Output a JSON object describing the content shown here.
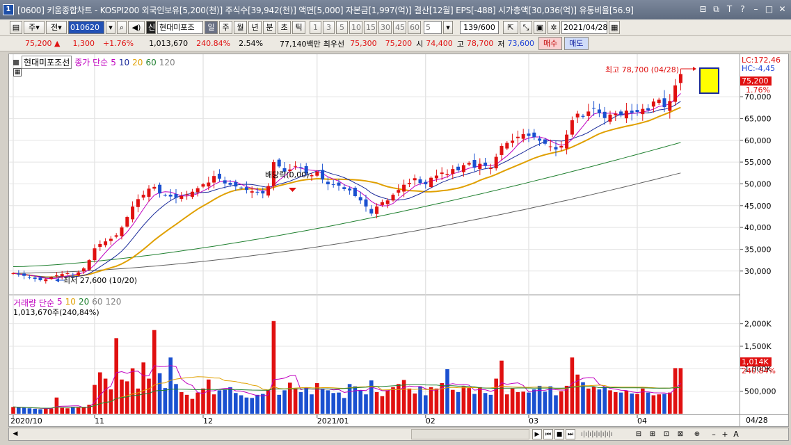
{
  "window": {
    "title": "[0600] 키움종합차트 - KOSPI200 외국인보유[5,200(천)] 주식수[39,942(천)] 액면[5,000] 자본금[1,997(억)] 결산[12월] EPS[-488] 시가총액[30,036(억)] 유통비율[56.9]",
    "app_icon": "1",
    "buttons": [
      "⊟",
      "⧉",
      "T",
      "?",
      "–",
      "□",
      "✕"
    ]
  },
  "toolbar": {
    "type1": "주",
    "type2": "전",
    "code": "010620",
    "sound_icon": "speaker-icon",
    "badge": "신",
    "name": "현대미포조",
    "periods": [
      "일",
      "주",
      "월",
      "년",
      "분",
      "초",
      "틱"
    ],
    "selected_period": "일",
    "intervals": [
      "1",
      "3",
      "5",
      "10",
      "15",
      "30",
      "45",
      "60"
    ],
    "interval_value": "5",
    "count": "139/600",
    "date": "2021/04/28"
  },
  "quote": {
    "price": "75,200",
    "arrow": "▲",
    "change": "1,300",
    "pct": "+1.76%",
    "volume": "1,013,670",
    "vol_ratio": "240.84%",
    "turnover": "2.54%",
    "amount": "77,140백만",
    "preferred_label": "최우선",
    "ask": "75,300",
    "bid": "75,200",
    "open_label": "시",
    "open": "74,400",
    "high_label": "고",
    "high": "78,700",
    "low_label": "저",
    "low": "73,600",
    "buy": "매수",
    "sell": "매도"
  },
  "price_panel": {
    "name_box": "현대미포조선",
    "legend": "종가 단순",
    "ma": [
      "5",
      "10",
      "20",
      "60",
      "120"
    ],
    "ma_colors": [
      "#c000c0",
      "#1a2a9a",
      "#e0a000",
      "#208030",
      "#606060"
    ],
    "high_annotation": "최고 78,700 (04/28)",
    "low_annotation": "최저 27,600 (10/20)",
    "dividend_annotation": "배당락(0,00)",
    "lc": "LC:172,46",
    "hc": "HC:-4,45",
    "last_price": "75,200",
    "last_pct": "1.76%",
    "y_ticks": [
      "70,000",
      "65,000",
      "60,000",
      "55,000",
      "50,000",
      "45,000",
      "40,000",
      "35,000",
      "30,000"
    ]
  },
  "volume_panel": {
    "title": "거래량 단순",
    "ma": [
      "5",
      "10",
      "20",
      "60",
      "120"
    ],
    "value_label": "1,013,670주(240,84%)",
    "last": "1,014K",
    "last_pct": "240.84%",
    "y_ticks": [
      "2,000K",
      "1,500K",
      "1,000K",
      "500,000"
    ]
  },
  "x_axis": {
    "labels": [
      "2020/10",
      "11",
      "12",
      "2021/01",
      "02",
      "03",
      "04"
    ],
    "right_label": "04/28"
  },
  "chart_data": {
    "type": "candlestick",
    "closes": [
      29500,
      29200,
      28900,
      28500,
      28200,
      27900,
      28100,
      28600,
      29000,
      29300,
      29500,
      29100,
      29700,
      30600,
      32500,
      35200,
      36200,
      36800,
      37400,
      38200,
      40000,
      42400,
      44800,
      46500,
      47500,
      48900,
      49300,
      47800,
      47400,
      47100,
      46800,
      47200,
      47600,
      48200,
      49000,
      49900,
      50300,
      51800,
      51200,
      50100,
      49800,
      49400,
      49000,
      48600,
      48300,
      48000,
      47800,
      49500,
      55000,
      54000,
      52800,
      53300,
      54100,
      53800,
      52400,
      52000,
      52800,
      51000,
      49900,
      49800,
      49600,
      48800,
      48500,
      47200,
      46200,
      44800,
      43200,
      44800,
      45800,
      46200,
      47500,
      48600,
      49800,
      50200,
      51300,
      50200,
      49900,
      51400,
      51900,
      52600,
      52300,
      53400,
      53100,
      54300,
      54800,
      53700,
      54600,
      54100,
      53700,
      56200,
      58700,
      59400,
      59900,
      60800,
      61400,
      61000,
      60700,
      59900,
      59200,
      58600,
      57900,
      58700,
      61300,
      64600,
      66100,
      65400,
      66600,
      67400,
      66200,
      65100,
      65900,
      66100,
      65700,
      66800,
      66300,
      66500,
      67200,
      66900,
      68900,
      69300,
      67600,
      69000,
      72600,
      75200
    ],
    "volumes": [
      150,
      140,
      130,
      120,
      110,
      100,
      120,
      115,
      360,
      130,
      120,
      140,
      135,
      150,
      200,
      640,
      920,
      780,
      540,
      1680,
      760,
      720,
      1010,
      560,
      1140,
      780,
      1860,
      900,
      570,
      1250,
      660,
      480,
      420,
      330,
      470,
      560,
      760,
      430,
      520,
      540,
      590,
      460,
      410,
      360,
      350,
      420,
      440,
      520,
      2060,
      420,
      520,
      690,
      560,
      480,
      580,
      430,
      680,
      560,
      520,
      460,
      470,
      350,
      660,
      610,
      520,
      430,
      740,
      480,
      390,
      520,
      590,
      660,
      750,
      560,
      450,
      610,
      410,
      590,
      560,
      680,
      990,
      530,
      480,
      600,
      570,
      440,
      590,
      460,
      420,
      780,
      1180,
      430,
      560,
      480,
      490,
      470,
      540,
      620,
      490,
      610,
      410,
      500,
      620,
      1250,
      870,
      700,
      560,
      600,
      540,
      600,
      520,
      480,
      470,
      510,
      450,
      440,
      560,
      470,
      410,
      430,
      440,
      470,
      1014,
      1014
    ]
  }
}
